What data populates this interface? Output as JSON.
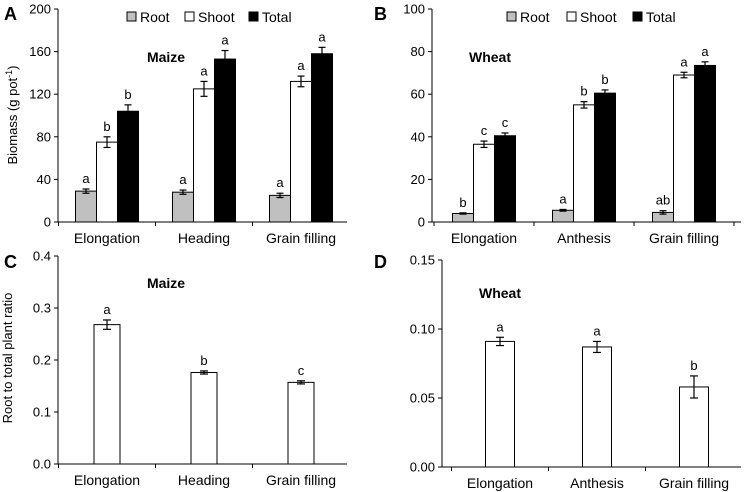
{
  "colors": {
    "root": "#c0c0c0",
    "shoot": "#ffffff",
    "total": "#000000",
    "axis": "#000000"
  },
  "chart_data": [
    {
      "type": "bar",
      "panel_label": "A",
      "title": "Maize",
      "ylabel": "Biomass (g pot",
      "ylabel_sup": "-1",
      "ylabel_close": ")",
      "ylim": [
        0,
        200
      ],
      "yticks": [
        "0",
        "40",
        "80",
        "120",
        "160",
        "200"
      ],
      "categories": [
        "Elongation",
        "Heading",
        "Grain filling"
      ],
      "legend": {
        "position": "top",
        "entries": [
          "Root",
          "Shoot",
          "Total"
        ]
      },
      "series": [
        {
          "name": "Root",
          "values": [
            29,
            28,
            25
          ],
          "errors": [
            2,
            2,
            2
          ],
          "letters": [
            "a",
            "a",
            "a"
          ]
        },
        {
          "name": "Shoot",
          "values": [
            75,
            125,
            132
          ],
          "errors": [
            5,
            7,
            5
          ],
          "letters": [
            "b",
            "a",
            "a"
          ]
        },
        {
          "name": "Total",
          "values": [
            104,
            153,
            158
          ],
          "errors": [
            6,
            8,
            6
          ],
          "letters": [
            "b",
            "a",
            "a"
          ]
        }
      ]
    },
    {
      "type": "bar",
      "panel_label": "B",
      "title": "Wheat",
      "ylabel": "",
      "ylim": [
        0,
        100
      ],
      "yticks": [
        "0",
        "20",
        "40",
        "60",
        "80",
        "100"
      ],
      "categories": [
        "Elongation",
        "Anthesis",
        "Grain filling"
      ],
      "legend": {
        "position": "top",
        "entries": [
          "Root",
          "Shoot",
          "Total"
        ]
      },
      "series": [
        {
          "name": "Root",
          "values": [
            4,
            5.5,
            4.5
          ],
          "errors": [
            0.3,
            0.4,
            0.8
          ],
          "letters": [
            "b",
            "a",
            "ab"
          ]
        },
        {
          "name": "Shoot",
          "values": [
            36.5,
            55,
            69
          ],
          "errors": [
            1.5,
            1.5,
            1.3
          ],
          "letters": [
            "c",
            "b",
            "a"
          ]
        },
        {
          "name": "Total",
          "values": [
            40.5,
            60.5,
            73.5
          ],
          "errors": [
            1.3,
            1.5,
            1.7
          ],
          "letters": [
            "c",
            "b",
            "a"
          ]
        }
      ]
    },
    {
      "type": "bar",
      "panel_label": "C",
      "title": "Maize",
      "ylabel": "Root to total plant ratio",
      "ylim": [
        0,
        0.4
      ],
      "yticks": [
        "0.0",
        "0.1",
        "0.2",
        "0.3",
        "0.4"
      ],
      "categories": [
        "Elongation",
        "Heading",
        "Grain filling"
      ],
      "series": [
        {
          "name": "Ratio",
          "values": [
            0.268,
            0.176,
            0.157
          ],
          "errors": [
            0.009,
            0.003,
            0.003
          ],
          "letters": [
            "a",
            "b",
            "c"
          ]
        }
      ]
    },
    {
      "type": "bar",
      "panel_label": "D",
      "title": "Wheat",
      "ylabel": "",
      "ylim": [
        0,
        0.15
      ],
      "yticks": [
        "0.00",
        "0.05",
        "0.10",
        "0.15"
      ],
      "categories": [
        "Elongation",
        "Anthesis",
        "Grain filling"
      ],
      "series": [
        {
          "name": "Ratio",
          "values": [
            0.091,
            0.087,
            0.058
          ],
          "errors": [
            0.003,
            0.004,
            0.008
          ],
          "letters": [
            "a",
            "a",
            "b"
          ]
        }
      ]
    }
  ]
}
